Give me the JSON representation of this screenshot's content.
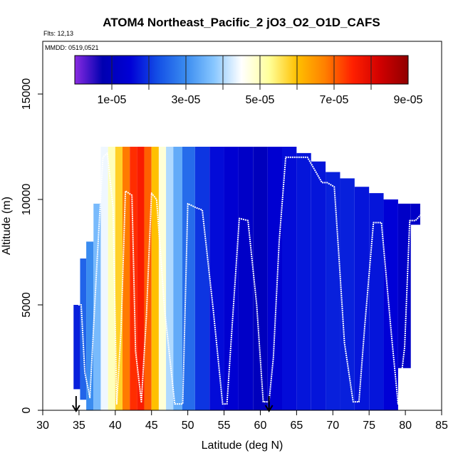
{
  "chart_data": {
    "type": "heatmap",
    "title": "ATOM4 Northeast_Pacific_2 jO3_O2_O1D_CAFS",
    "flights_note": "Flts: 12,13",
    "dates_note": "MMDD: 0519,0521",
    "xlabel": "Latitude (deg N)",
    "ylabel": "Altitude (m)",
    "xlim": [
      30,
      85
    ],
    "ylim": [
      0,
      17500
    ],
    "x_ticks": [
      30,
      35,
      40,
      45,
      50,
      55,
      60,
      65,
      70,
      75,
      80,
      85
    ],
    "y_ticks": [
      0,
      5000,
      10000,
      15000
    ],
    "colorbar": {
      "range": [
        0,
        9e-05
      ],
      "tick_values": [
        1e-05,
        3e-05,
        5e-05,
        7e-05,
        9e-05
      ],
      "tick_labels": [
        "1e-05",
        "3e-05",
        "5e-05",
        "7e-05",
        "9e-05"
      ],
      "colors": [
        "#8a2be2",
        "#0000b0",
        "#0000d6",
        "#1450e6",
        "#3a8cf0",
        "#87c6ff",
        "#ffffff",
        "#ffff99",
        "#ffc000",
        "#ff8000",
        "#ff2000",
        "#d00000",
        "#900000"
      ]
    },
    "columns": [
      {
        "lat": 34.8,
        "alt_min": 1000,
        "alt_max": 5000,
        "value": 1.8e-05
      },
      {
        "lat": 35.5,
        "alt_min": 500,
        "alt_max": 7200,
        "value": 2.5e-05
      },
      {
        "lat": 36.5,
        "alt_min": 0,
        "alt_max": 8000,
        "value": 3e-05
      },
      {
        "lat": 37.5,
        "alt_min": 0,
        "alt_max": 9800,
        "value": 3.6e-05
      },
      {
        "lat": 38.5,
        "alt_min": 0,
        "alt_max": 12500,
        "value": 4.4e-05
      },
      {
        "lat": 39.5,
        "alt_min": 0,
        "alt_max": 12500,
        "value": 5e-05
      },
      {
        "lat": 40.5,
        "alt_min": 0,
        "alt_max": 12500,
        "value": 5.8e-05
      },
      {
        "lat": 41.5,
        "alt_min": 0,
        "alt_max": 12500,
        "value": 6.8e-05
      },
      {
        "lat": 42.5,
        "alt_min": 0,
        "alt_max": 12500,
        "value": 7.4e-05
      },
      {
        "lat": 43.5,
        "alt_min": 0,
        "alt_max": 12500,
        "value": 7.6e-05
      },
      {
        "lat": 44.5,
        "alt_min": 0,
        "alt_max": 12500,
        "value": 7e-05
      },
      {
        "lat": 45.5,
        "alt_min": 0,
        "alt_max": 12500,
        "value": 6e-05
      },
      {
        "lat": 46.5,
        "alt_min": 0,
        "alt_max": 12500,
        "value": 4.8e-05
      },
      {
        "lat": 47.5,
        "alt_min": 0,
        "alt_max": 12500,
        "value": 4e-05
      },
      {
        "lat": 48.5,
        "alt_min": 0,
        "alt_max": 12500,
        "value": 3.4e-05
      },
      {
        "lat": 50,
        "alt_min": 0,
        "alt_max": 12500,
        "value": 2.6e-05
      },
      {
        "lat": 52,
        "alt_min": 0,
        "alt_max": 12500,
        "value": 2e-05
      },
      {
        "lat": 54,
        "alt_min": 0,
        "alt_max": 12500,
        "value": 1.6e-05
      },
      {
        "lat": 56,
        "alt_min": 0,
        "alt_max": 12500,
        "value": 1.4e-05
      },
      {
        "lat": 58,
        "alt_min": 0,
        "alt_max": 12500,
        "value": 1.2e-05
      },
      {
        "lat": 60,
        "alt_min": 0,
        "alt_max": 12500,
        "value": 1e-05
      },
      {
        "lat": 62,
        "alt_min": 0,
        "alt_max": 12500,
        "value": 1.4e-05
      },
      {
        "lat": 64,
        "alt_min": 0,
        "alt_max": 12500,
        "value": 1.6e-05
      },
      {
        "lat": 66,
        "alt_min": 0,
        "alt_max": 12200,
        "value": 1.7e-05
      },
      {
        "lat": 68,
        "alt_min": 0,
        "alt_max": 11800,
        "value": 1.7e-05
      },
      {
        "lat": 70,
        "alt_min": 0,
        "alt_max": 11300,
        "value": 1.8e-05
      },
      {
        "lat": 72,
        "alt_min": 0,
        "alt_max": 11000,
        "value": 1.8e-05
      },
      {
        "lat": 74,
        "alt_min": 0,
        "alt_max": 10600,
        "value": 1.7e-05
      },
      {
        "lat": 76,
        "alt_min": 0,
        "alt_max": 10300,
        "value": 1.7e-05
      },
      {
        "lat": 78,
        "alt_min": 0,
        "alt_max": 10000,
        "value": 1.5e-05
      },
      {
        "lat": 80,
        "alt_min": 2000,
        "alt_max": 9800,
        "value": 1.2e-05
      },
      {
        "lat": 81.5,
        "alt_min": 8800,
        "alt_max": 9800,
        "value": 1.2e-05
      }
    ],
    "flight_track": {
      "lat": [
        34.9,
        35.3,
        35.8,
        36.5,
        37.4,
        38.3,
        38.9,
        39.7,
        40.2,
        40.8,
        41.4,
        42.3,
        42.8,
        43.6,
        44.3,
        45.0,
        45.7,
        46.8,
        48.2,
        49.3,
        50.0,
        51.2,
        52.0,
        53.5,
        54.8,
        55.4,
        56.6,
        57.1,
        58.3,
        59.5,
        60.4,
        61.2,
        61.8,
        62.6,
        63.5,
        64.2,
        66.5,
        68.5,
        69.2,
        70.2,
        70.8,
        71.6,
        72.8,
        73.6,
        74.4,
        75.6,
        76.7,
        78.1,
        79.0,
        79.9,
        80.6,
        81.4,
        82.2
      ],
      "alt": [
        5000,
        5000,
        1800,
        600,
        6500,
        12000,
        12200,
        9600,
        300,
        3800,
        10400,
        10200,
        2800,
        400,
        4500,
        10300,
        10000,
        4800,
        300,
        300,
        9800,
        9600,
        9500,
        4800,
        300,
        300,
        6500,
        9100,
        9000,
        5000,
        400,
        400,
        2500,
        8000,
        12000,
        12000,
        12000,
        10800,
        10800,
        10600,
        7500,
        3200,
        400,
        400,
        4000,
        8900,
        8900,
        3500,
        300,
        3000,
        9000,
        9000,
        9300
      ]
    },
    "arrows_lat": [
      34.6,
      61.2
    ]
  }
}
